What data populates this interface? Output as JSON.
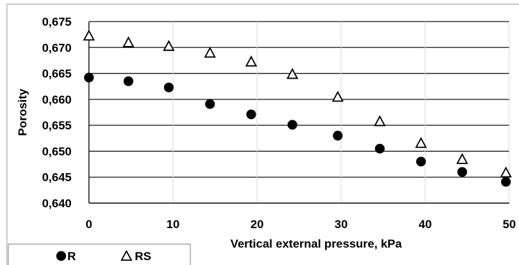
{
  "chart_data": {
    "type": "scatter",
    "title": "",
    "xlabel": "Vertical external pressure, kPa",
    "ylabel": "Porosity",
    "xlim": [
      0,
      50
    ],
    "ylim": [
      0.64,
      0.675
    ],
    "x_ticks": [
      "0",
      "10",
      "20",
      "30",
      "40",
      "50"
    ],
    "y_ticks": [
      "0,640",
      "0,645",
      "0,650",
      "0,655",
      "0,660",
      "0,665",
      "0,670",
      "0,675"
    ],
    "grid": "horizontal and vertical",
    "legend_position": "bottom-left",
    "series": [
      {
        "name": "R",
        "marker": "filled-circle",
        "color": "#000000",
        "x": [
          0,
          4.7,
          9.5,
          14.4,
          19.3,
          24.2,
          29.6,
          34.6,
          39.5,
          44.4,
          49.6
        ],
        "y": [
          0.6642,
          0.6635,
          0.6623,
          0.6591,
          0.6571,
          0.6551,
          0.653,
          0.6505,
          0.648,
          0.646,
          0.6441
        ]
      },
      {
        "name": "RS",
        "marker": "open-triangle",
        "color": "#000000",
        "x": [
          0,
          4.7,
          9.5,
          14.4,
          19.3,
          24.2,
          29.6,
          34.6,
          39.5,
          44.4,
          49.6
        ],
        "y": [
          0.6722,
          0.6709,
          0.6702,
          0.6689,
          0.6672,
          0.6648,
          0.6604,
          0.6557,
          0.6515,
          0.6484,
          0.6458
        ]
      }
    ]
  }
}
